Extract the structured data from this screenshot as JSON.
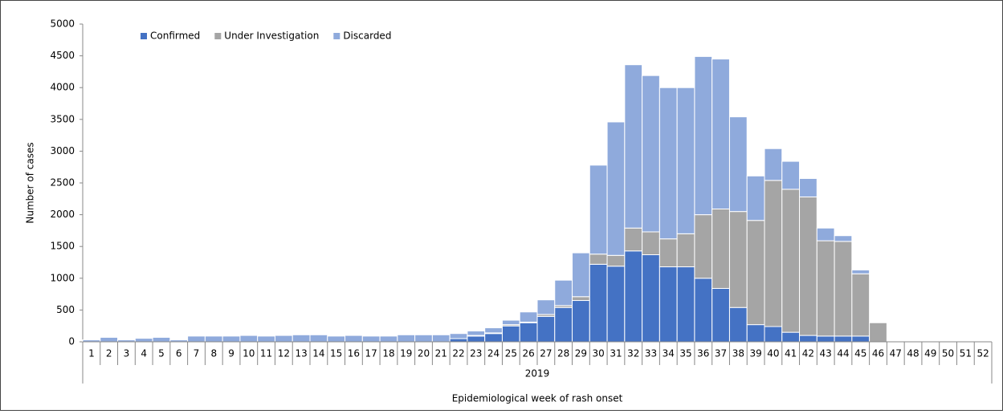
{
  "chart_data": {
    "type": "stacked_bar",
    "x_label": "Epidemiological week of rash onset",
    "y_label": "Number of cases",
    "x_group_label": "2019",
    "categories": [
      "1",
      "2",
      "3",
      "4",
      "5",
      "6",
      "7",
      "8",
      "9",
      "10",
      "11",
      "12",
      "13",
      "14",
      "15",
      "16",
      "17",
      "18",
      "19",
      "20",
      "21",
      "22",
      "23",
      "24",
      "25",
      "26",
      "27",
      "28",
      "29",
      "30",
      "31",
      "32",
      "33",
      "34",
      "35",
      "36",
      "37",
      "38",
      "39",
      "40",
      "41",
      "42",
      "43",
      "44",
      "45",
      "46",
      "47",
      "48",
      "49",
      "50",
      "51",
      "52"
    ],
    "series": [
      {
        "name": "Confirmed",
        "color": "#4472c4",
        "values": [
          0,
          0,
          0,
          0,
          0,
          0,
          0,
          0,
          0,
          0,
          0,
          0,
          0,
          0,
          0,
          0,
          0,
          0,
          0,
          0,
          0,
          50,
          90,
          130,
          250,
          300,
          400,
          540,
          650,
          1220,
          1190,
          1430,
          1370,
          1180,
          1180,
          1000,
          840,
          540,
          270,
          240,
          150,
          100,
          90,
          90,
          90,
          0,
          0,
          0,
          0,
          0,
          0,
          0
        ]
      },
      {
        "name": "Under Investigation",
        "color": "#a5a5a5",
        "values": [
          0,
          0,
          0,
          0,
          0,
          0,
          0,
          0,
          0,
          0,
          0,
          0,
          0,
          0,
          0,
          0,
          0,
          0,
          0,
          0,
          0,
          0,
          10,
          10,
          20,
          10,
          30,
          30,
          60,
          160,
          170,
          360,
          360,
          440,
          520,
          1000,
          1250,
          1510,
          1640,
          2300,
          2250,
          2180,
          1500,
          1490,
          980,
          300,
          0,
          0,
          0,
          0,
          0,
          0
        ]
      },
      {
        "name": "Discarded",
        "color": "#8faadc",
        "values": [
          30,
          70,
          30,
          55,
          70,
          30,
          90,
          90,
          90,
          100,
          90,
          100,
          110,
          110,
          90,
          100,
          90,
          90,
          110,
          110,
          110,
          80,
          70,
          80,
          70,
          160,
          230,
          400,
          690,
          1400,
          2100,
          2570,
          2460,
          2380,
          2300,
          2490,
          2360,
          1490,
          700,
          500,
          440,
          290,
          200,
          90,
          60,
          0,
          0,
          0,
          0,
          0,
          0,
          0
        ]
      }
    ],
    "ylim": [
      0,
      5000
    ],
    "yticks": [
      0,
      500,
      1000,
      1500,
      2000,
      2500,
      3000,
      3500,
      4000,
      4500,
      5000
    ],
    "legend": "top-left"
  }
}
